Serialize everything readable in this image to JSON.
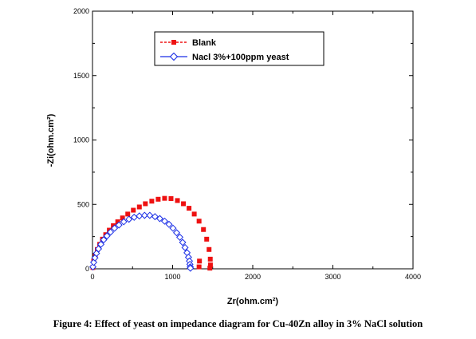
{
  "caption": "Figure 4: Effect of yeast on impedance diagram for Cu-40Zn alloy in 3% NaCl solution",
  "chart_data": {
    "type": "scatter",
    "xlabel": "Zr(ohm.cm²)",
    "ylabel": "-Zi(ohm.cm²)",
    "xlim": [
      0,
      4000
    ],
    "ylim": [
      0,
      2000
    ],
    "xticks": [
      0,
      1000,
      2000,
      3000,
      4000
    ],
    "yticks": [
      0,
      500,
      1000,
      1500,
      2000
    ],
    "legend_position": "top-center",
    "series": [
      {
        "name": "Blank",
        "color": "#ee1111",
        "marker": "filled-square",
        "x": [
          5,
          15,
          35,
          60,
          90,
          125,
          165,
          210,
          260,
          315,
          375,
          440,
          510,
          585,
          660,
          740,
          820,
          900,
          980,
          1060,
          1135,
          1205,
          1270,
          1330,
          1385,
          1425,
          1455,
          1470,
          1472,
          1465,
          1335,
          1330
        ],
        "y": [
          10,
          60,
          105,
          150,
          190,
          230,
          265,
          300,
          335,
          365,
          395,
          425,
          455,
          480,
          505,
          525,
          540,
          547,
          545,
          530,
          505,
          470,
          425,
          370,
          305,
          230,
          150,
          75,
          30,
          5,
          60,
          15
        ]
      },
      {
        "name": "Nacl 3%+100ppm yeast",
        "color": "#1a2ee6",
        "marker": "open-diamond",
        "x": [
          5,
          15,
          30,
          50,
          75,
          105,
          140,
          180,
          225,
          275,
          330,
          390,
          455,
          520,
          585,
          650,
          715,
          780,
          840,
          900,
          955,
          1005,
          1050,
          1090,
          1125,
          1155,
          1180,
          1198,
          1210,
          1216,
          1220,
          1222
        ],
        "y": [
          15,
          50,
          85,
          120,
          155,
          190,
          225,
          255,
          285,
          315,
          340,
          365,
          385,
          400,
          410,
          415,
          415,
          405,
          390,
          370,
          345,
          315,
          280,
          245,
          205,
          165,
          125,
          90,
          60,
          35,
          15,
          5
        ]
      }
    ]
  }
}
